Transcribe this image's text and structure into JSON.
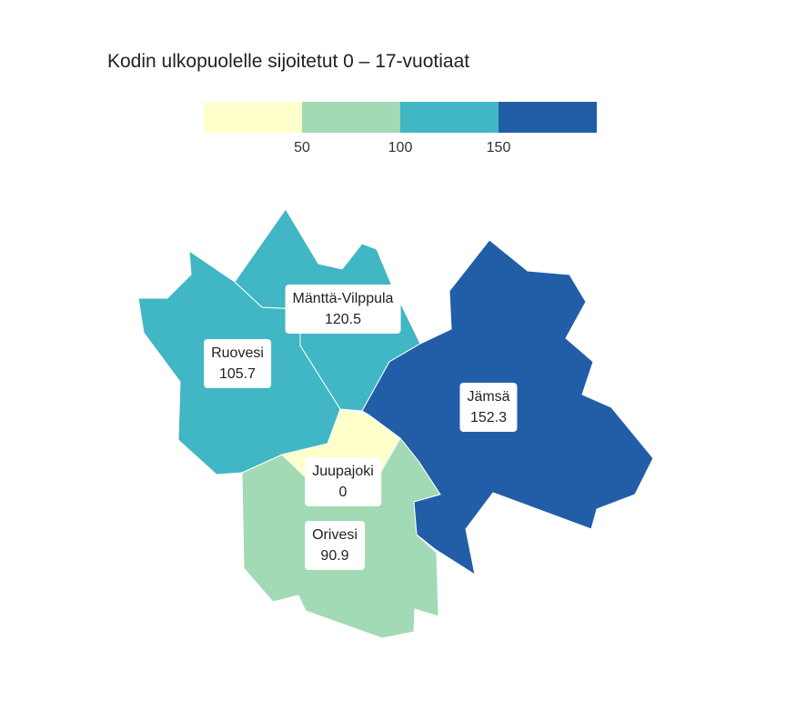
{
  "title": "Kodin ulkopuolelle sijoitetut 0 – 17-vuotiaat",
  "legend": {
    "bins": [
      {
        "color": "#ffffcc",
        "from": 0,
        "to": 50
      },
      {
        "color": "#a1dab4",
        "from": 50,
        "to": 100
      },
      {
        "color": "#41b6c4",
        "from": 100,
        "to": 150
      },
      {
        "color": "#225ea8",
        "from": 150,
        "to": 200
      }
    ],
    "ticks": [
      "50",
      "100",
      "150"
    ]
  },
  "regions": [
    {
      "name": "Ruovesi",
      "value": "105.7",
      "color": "#41b6c4"
    },
    {
      "name": "Mänttä-Vilppula",
      "value": "120.5",
      "color": "#41b6c4"
    },
    {
      "name": "Jämsä",
      "value": "152.3",
      "color": "#225ea8"
    },
    {
      "name": "Juupajoki",
      "value": "0",
      "color": "#ffffcc"
    },
    {
      "name": "Orivesi",
      "value": "90.9",
      "color": "#a1dab4"
    }
  ]
}
